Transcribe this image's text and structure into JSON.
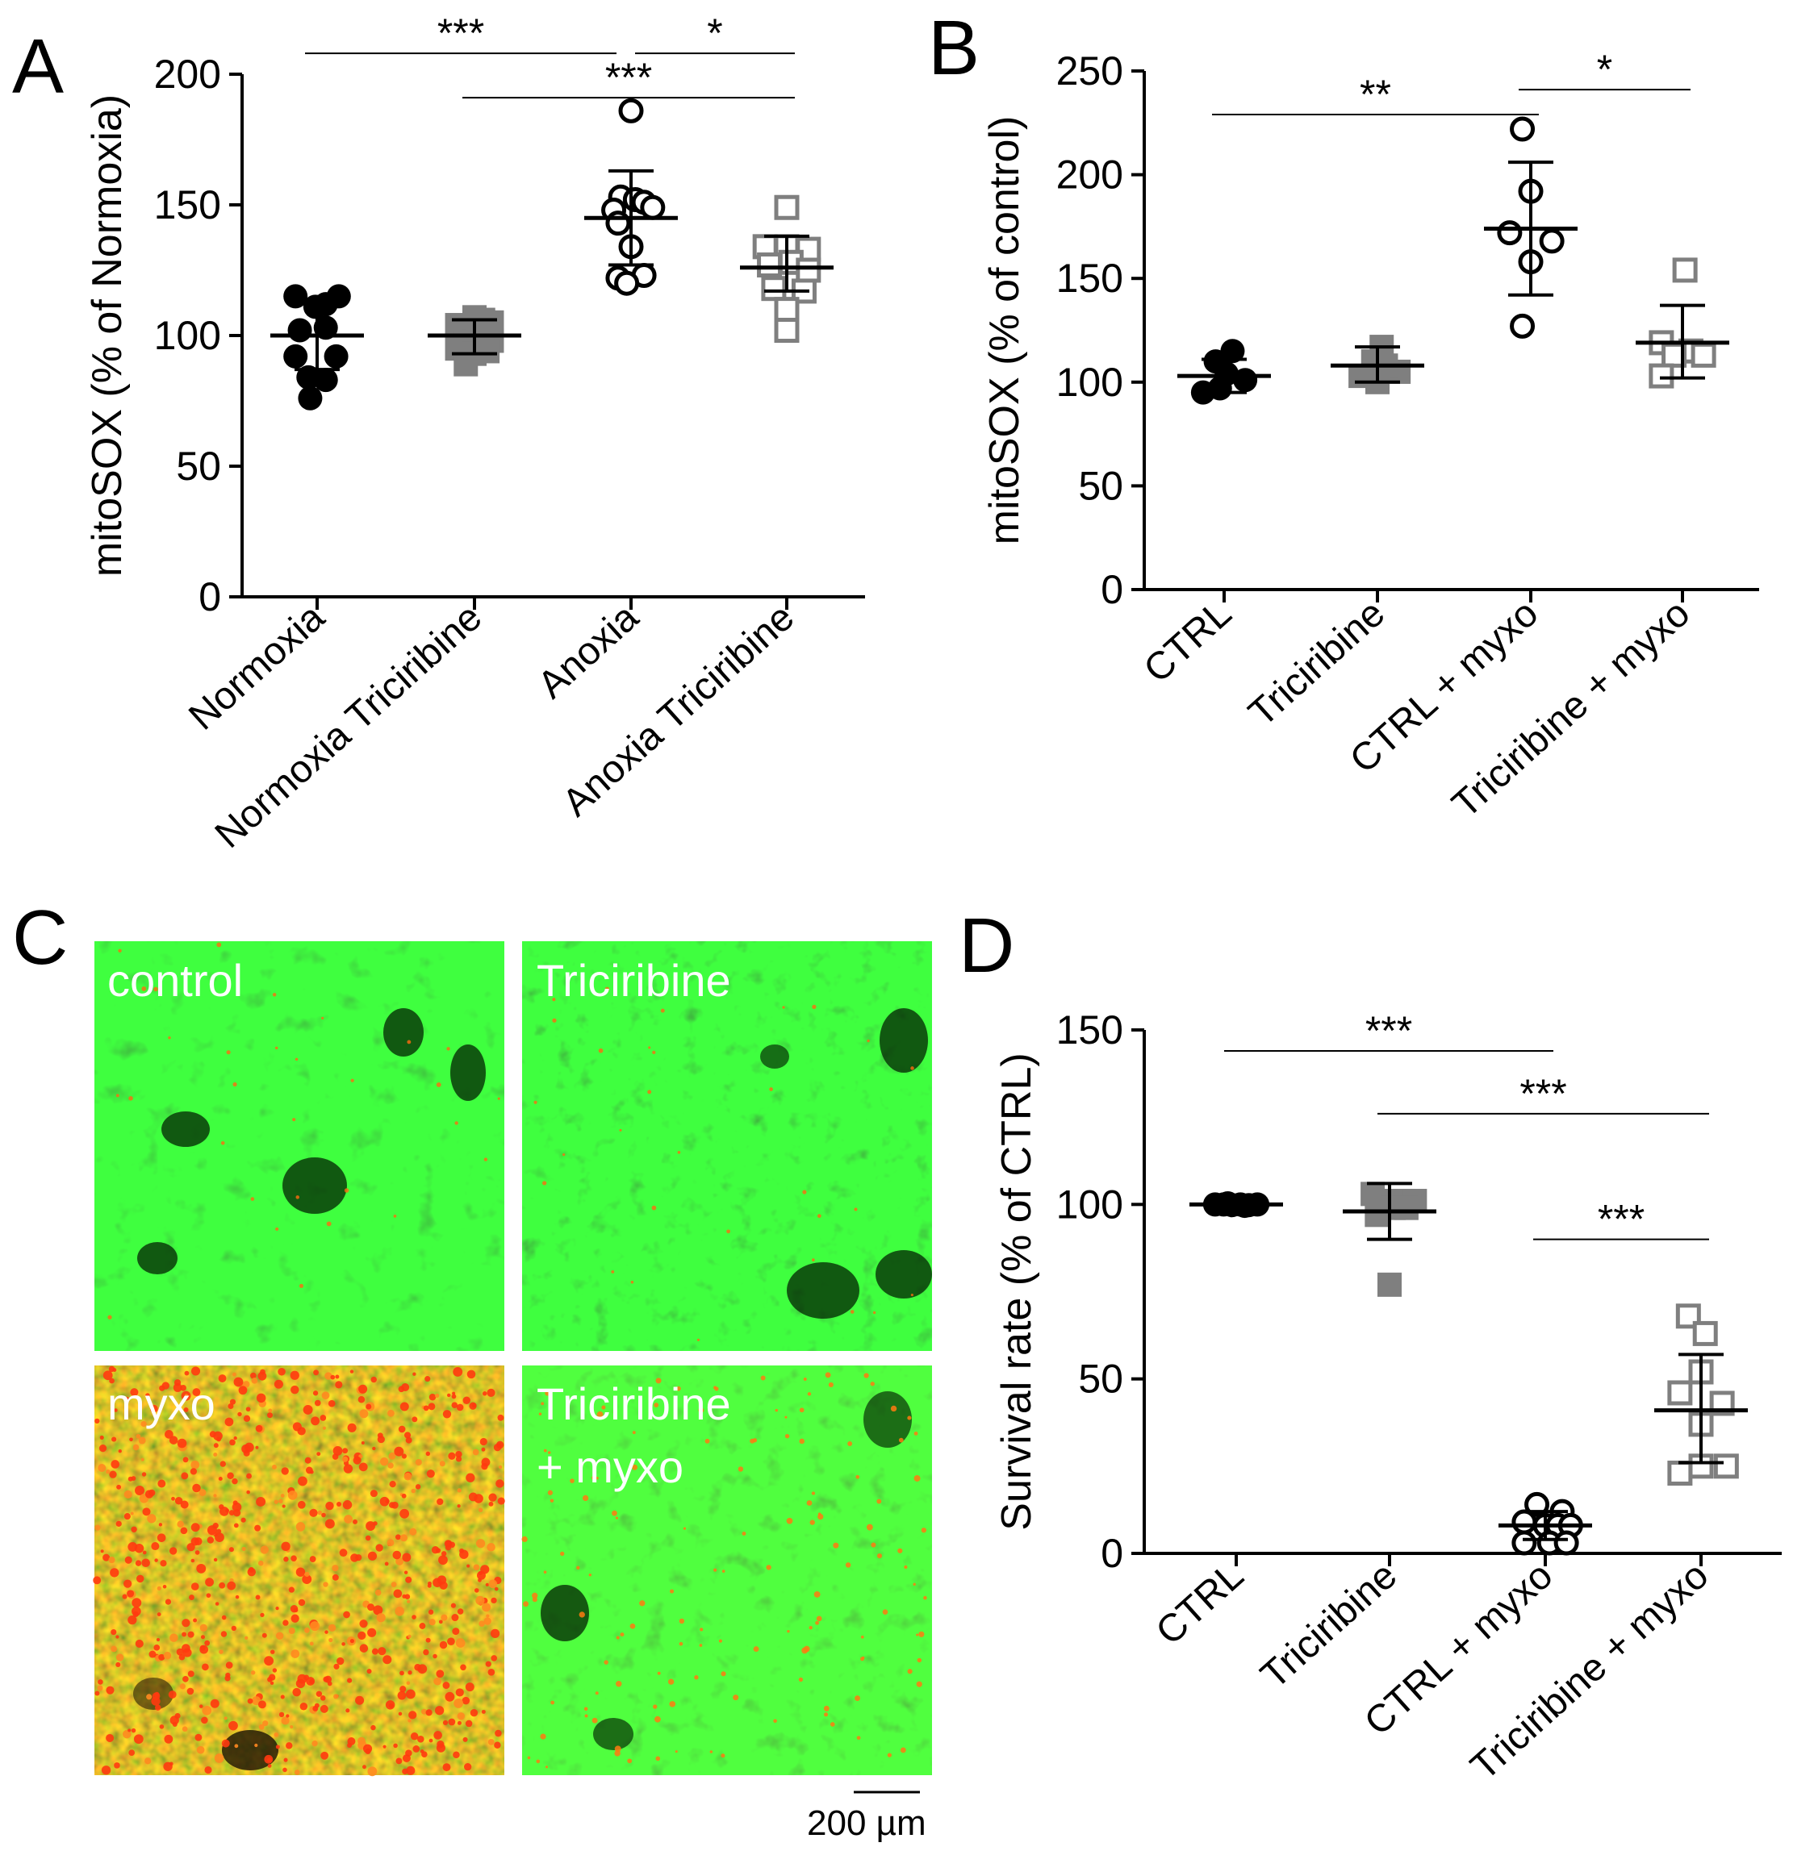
{
  "colors": {
    "black": "#000000",
    "gray": "#7f7f7f",
    "mito_green": "#1db81d",
    "mito_red": "#e8340f"
  },
  "chart_data": [
    {
      "panel": "A",
      "type": "scatter",
      "ylabel": "mitoSOX (% of Normoxia)",
      "ylim": [
        0,
        200
      ],
      "yticks": [
        0,
        50,
        100,
        150,
        200
      ],
      "categories": [
        "Normoxia",
        "Normoxia Triciribine",
        "Anoxia",
        "Anoxia Triciribine"
      ],
      "series": [
        {
          "category": "Normoxia",
          "marker": "filled-circle",
          "color": "#000000",
          "points": [
            [
              -0.25,
              115
            ],
            [
              -0.02,
              111
            ],
            [
              0.1,
              112
            ],
            [
              0.25,
              115
            ],
            [
              -0.2,
              102
            ],
            [
              0.1,
              103
            ],
            [
              -0.25,
              92
            ],
            [
              0.22,
              92
            ],
            [
              -0.1,
              84
            ],
            [
              0.1,
              83
            ],
            [
              -0.08,
              76
            ]
          ],
          "mean": 100,
          "sd_low": 87,
          "sd_high": 113
        },
        {
          "category": "Normoxia Triciribine",
          "marker": "filled-square",
          "color": "#7f7f7f",
          "points": [
            [
              -0.2,
              104
            ],
            [
              0.0,
              107
            ],
            [
              0.1,
              106
            ],
            [
              0.2,
              105
            ],
            [
              -0.1,
              97
            ],
            [
              0.05,
              100
            ],
            [
              0.2,
              98
            ],
            [
              -0.2,
              95
            ],
            [
              0.0,
              93
            ],
            [
              0.15,
              94
            ],
            [
              -0.1,
              89
            ]
          ],
          "mean": 100,
          "sd_low": 93,
          "sd_high": 106
        },
        {
          "category": "Anoxia",
          "marker": "open-circle",
          "color": "#000000",
          "points": [
            [
              0.0,
              186
            ],
            [
              -0.12,
              153
            ],
            [
              0.05,
              152
            ],
            [
              0.15,
              151
            ],
            [
              -0.2,
              148
            ],
            [
              0.25,
              149
            ],
            [
              -0.15,
              143
            ],
            [
              0.0,
              134
            ],
            [
              -0.15,
              122
            ],
            [
              0.15,
              123
            ],
            [
              -0.05,
              120
            ]
          ],
          "mean": 145,
          "sd_low": 127,
          "sd_high": 163
        },
        {
          "category": "Anoxia Triciribine",
          "marker": "open-square",
          "color": "#7f7f7f",
          "points": [
            [
              0.0,
              149
            ],
            [
              0.0,
              134
            ],
            [
              -0.25,
              134
            ],
            [
              0.25,
              133
            ],
            [
              -0.2,
              127
            ],
            [
              0.05,
              128
            ],
            [
              0.25,
              125
            ],
            [
              -0.15,
              118
            ],
            [
              0.2,
              117
            ],
            [
              0.0,
              110
            ],
            [
              0.0,
              102
            ]
          ],
          "mean": 126,
          "sd_low": 117,
          "sd_high": 138
        }
      ],
      "significance": [
        {
          "from": 0,
          "to": 2,
          "y": 208,
          "label": "***"
        },
        {
          "from": 2,
          "to": 3,
          "y": 208,
          "label": "*"
        },
        {
          "from": 1,
          "to": 3,
          "y": 191,
          "label": "***"
        }
      ]
    },
    {
      "panel": "B",
      "type": "scatter",
      "ylabel": "mitoSOX (% of control)",
      "ylim": [
        0,
        250
      ],
      "yticks": [
        0,
        50,
        100,
        150,
        200,
        250
      ],
      "categories": [
        "CTRL",
        "Triciribine",
        "CTRL + myxo",
        "Triciribine + myxo"
      ],
      "series": [
        {
          "category": "CTRL",
          "marker": "filled-circle",
          "color": "#000000",
          "points": [
            [
              0.1,
              115
            ],
            [
              -0.1,
              110
            ],
            [
              0.03,
              104
            ],
            [
              0.25,
              101
            ],
            [
              -0.05,
              97
            ],
            [
              -0.25,
              95
            ]
          ],
          "mean": 103,
          "sd_low": 95,
          "sd_high": 111
        },
        {
          "category": "Triciribine",
          "marker": "filled-square",
          "color": "#7f7f7f",
          "points": [
            [
              0.05,
              117
            ],
            [
              -0.05,
              110
            ],
            [
              -0.2,
              103
            ],
            [
              0.25,
              105
            ],
            [
              0.1,
              108
            ],
            [
              0.0,
              100
            ]
          ],
          "mean": 108,
          "sd_low": 100,
          "sd_high": 117
        },
        {
          "category": "CTRL + myxo",
          "marker": "open-circle",
          "color": "#000000",
          "points": [
            [
              -0.1,
              222
            ],
            [
              0.0,
              192
            ],
            [
              -0.25,
              172
            ],
            [
              0.25,
              168
            ],
            [
              0.0,
              158
            ],
            [
              -0.1,
              127
            ]
          ],
          "mean": 174,
          "sd_low": 142,
          "sd_high": 206
        },
        {
          "category": "Triciribine + myxo",
          "marker": "open-square",
          "color": "#7f7f7f",
          "points": [
            [
              0.03,
              154
            ],
            [
              -0.25,
              119
            ],
            [
              0.1,
              115
            ],
            [
              0.25,
              113
            ],
            [
              -0.1,
              113
            ],
            [
              -0.25,
              103
            ]
          ],
          "mean": 119,
          "sd_low": 102,
          "sd_high": 137
        }
      ],
      "significance": [
        {
          "from": 0,
          "to": 2,
          "y": 229,
          "label": "**"
        },
        {
          "from": 2,
          "to": 3,
          "y": 241,
          "label": "*"
        }
      ]
    },
    {
      "panel": "D",
      "type": "scatter",
      "ylabel": "Survival rate (% of CTRL)",
      "ylim": [
        0,
        150
      ],
      "yticks": [
        0,
        50,
        100,
        150
      ],
      "categories": [
        "CTRL",
        "Triciribine",
        "CTRL + myxo",
        "Triciribine + myxo"
      ],
      "series": [
        {
          "category": "CTRL",
          "marker": "filled-circle",
          "color": "#000000",
          "points": [
            [
              -0.25,
              100
            ],
            [
              -0.15,
              100
            ],
            [
              -0.05,
              99.8
            ],
            [
              0.05,
              100
            ],
            [
              0.15,
              99.8
            ],
            [
              0.25,
              100
            ],
            [
              -0.1,
              100.3
            ],
            [
              0.1,
              99.6
            ]
          ],
          "mean": 100,
          "sd_low": 99.6,
          "sd_high": 100.4
        },
        {
          "category": "Triciribine",
          "marker": "filled-square",
          "color": "#7f7f7f",
          "points": [
            [
              -0.2,
              103
            ],
            [
              -0.05,
              101
            ],
            [
              0.15,
              101
            ],
            [
              0.3,
              101
            ],
            [
              0.05,
              99
            ],
            [
              -0.15,
              97
            ],
            [
              0.2,
              99
            ],
            [
              0.0,
              77
            ]
          ],
          "mean": 98,
          "sd_low": 90,
          "sd_high": 106
        },
        {
          "category": "CTRL + myxo",
          "marker": "open-circle",
          "color": "#000000",
          "points": [
            [
              -0.1,
              14
            ],
            [
              0.2,
              12
            ],
            [
              -0.25,
              9
            ],
            [
              0.0,
              8
            ],
            [
              0.15,
              8
            ],
            [
              0.3,
              8
            ],
            [
              -0.25,
              3
            ],
            [
              0.05,
              3
            ],
            [
              0.25,
              3
            ]
          ],
          "mean": 8,
          "sd_low": 4,
          "sd_high": 12
        },
        {
          "category": "Triciribine + myxo",
          "marker": "open-square",
          "color": "#7f7f7f",
          "points": [
            [
              -0.15,
              68
            ],
            [
              0.05,
              63
            ],
            [
              0.0,
              52
            ],
            [
              -0.25,
              46
            ],
            [
              0.25,
              43
            ],
            [
              0.0,
              37
            ],
            [
              -0.25,
              23
            ],
            [
              0.0,
              25
            ],
            [
              0.3,
              25
            ]
          ],
          "mean": 41,
          "sd_low": 26,
          "sd_high": 57
        }
      ],
      "significance": [
        {
          "from": 0,
          "to": 2,
          "y": 144,
          "label": "***"
        },
        {
          "from": 1,
          "to": 3,
          "y": 126,
          "label": "***"
        },
        {
          "from": 2,
          "to": 3,
          "y": 90,
          "label": "***"
        }
      ]
    }
  ],
  "panel_c": {
    "images": [
      {
        "label": "control",
        "tone": "green"
      },
      {
        "label": "Triciribine",
        "tone": "green"
      },
      {
        "label": "myxo",
        "tone": "red"
      },
      {
        "label": "Triciribine\n+ myxo",
        "tone": "green-red"
      }
    ],
    "scale_bar_label": "200 µm"
  },
  "panel_letters": [
    "A",
    "B",
    "C",
    "D"
  ]
}
